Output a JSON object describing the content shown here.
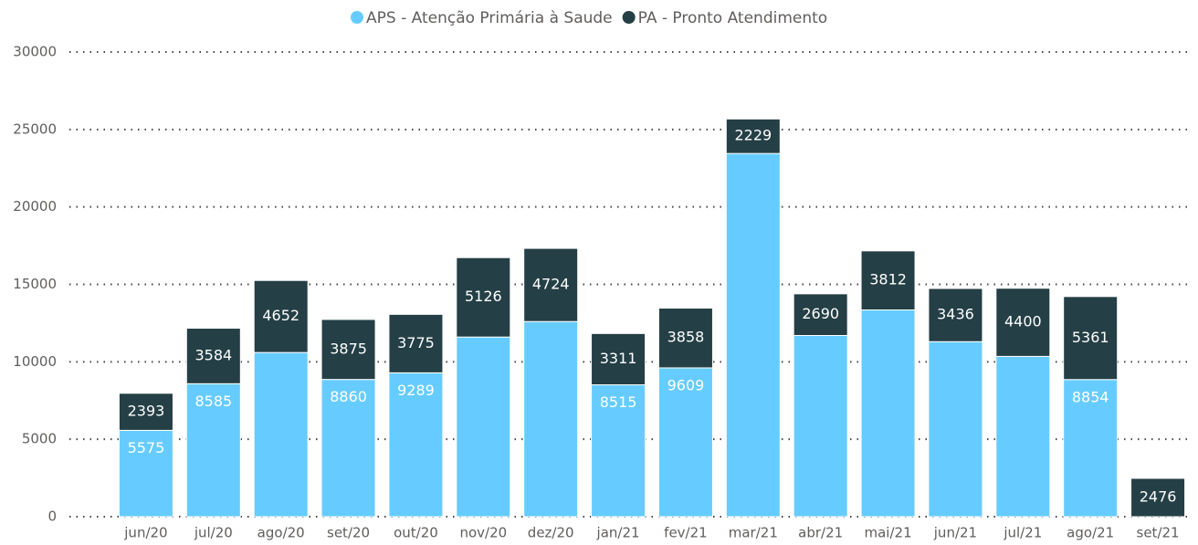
{
  "chart_data": {
    "type": "stacked_bar",
    "categories": [
      "jun/20",
      "jul/20",
      "ago/20",
      "set/20",
      "out/20",
      "nov/20",
      "dez/20",
      "jan/21",
      "fev/21",
      "mar/21",
      "abr/21",
      "mai/21",
      "jun/21",
      "jul/21",
      "ago/21",
      "set/21"
    ],
    "series": [
      {
        "name": "APS - Atenção Primária à Saude",
        "color": "#66ccff",
        "values": [
          5575,
          8585,
          10600,
          8860,
          9289,
          11600,
          12600,
          8515,
          9609,
          23450,
          11700,
          13350,
          11300,
          10350,
          8854,
          0
        ],
        "value_labels": [
          "5575",
          "8585",
          null,
          "8860",
          "9289",
          null,
          null,
          "8515",
          "9609",
          null,
          null,
          null,
          null,
          null,
          "8854",
          null
        ]
      },
      {
        "name": "PA - Pronto Atendimento",
        "color": "#243f45",
        "values": [
          2393,
          3584,
          4652,
          3875,
          3775,
          5126,
          4724,
          3311,
          3858,
          2229,
          2690,
          3812,
          3436,
          4400,
          5361,
          2476
        ],
        "value_labels": [
          "2393",
          "3584",
          "4652",
          "3875",
          "3775",
          "5126",
          "4724",
          "3311",
          "3858",
          "2229",
          "2690",
          "3812",
          "3436",
          "4400",
          "5361",
          "2476"
        ]
      }
    ],
    "ylim": [
      0,
      30000
    ],
    "yticks": [
      0,
      5000,
      10000,
      15000,
      20000,
      25000,
      30000
    ],
    "grid": true,
    "legend": "top"
  }
}
